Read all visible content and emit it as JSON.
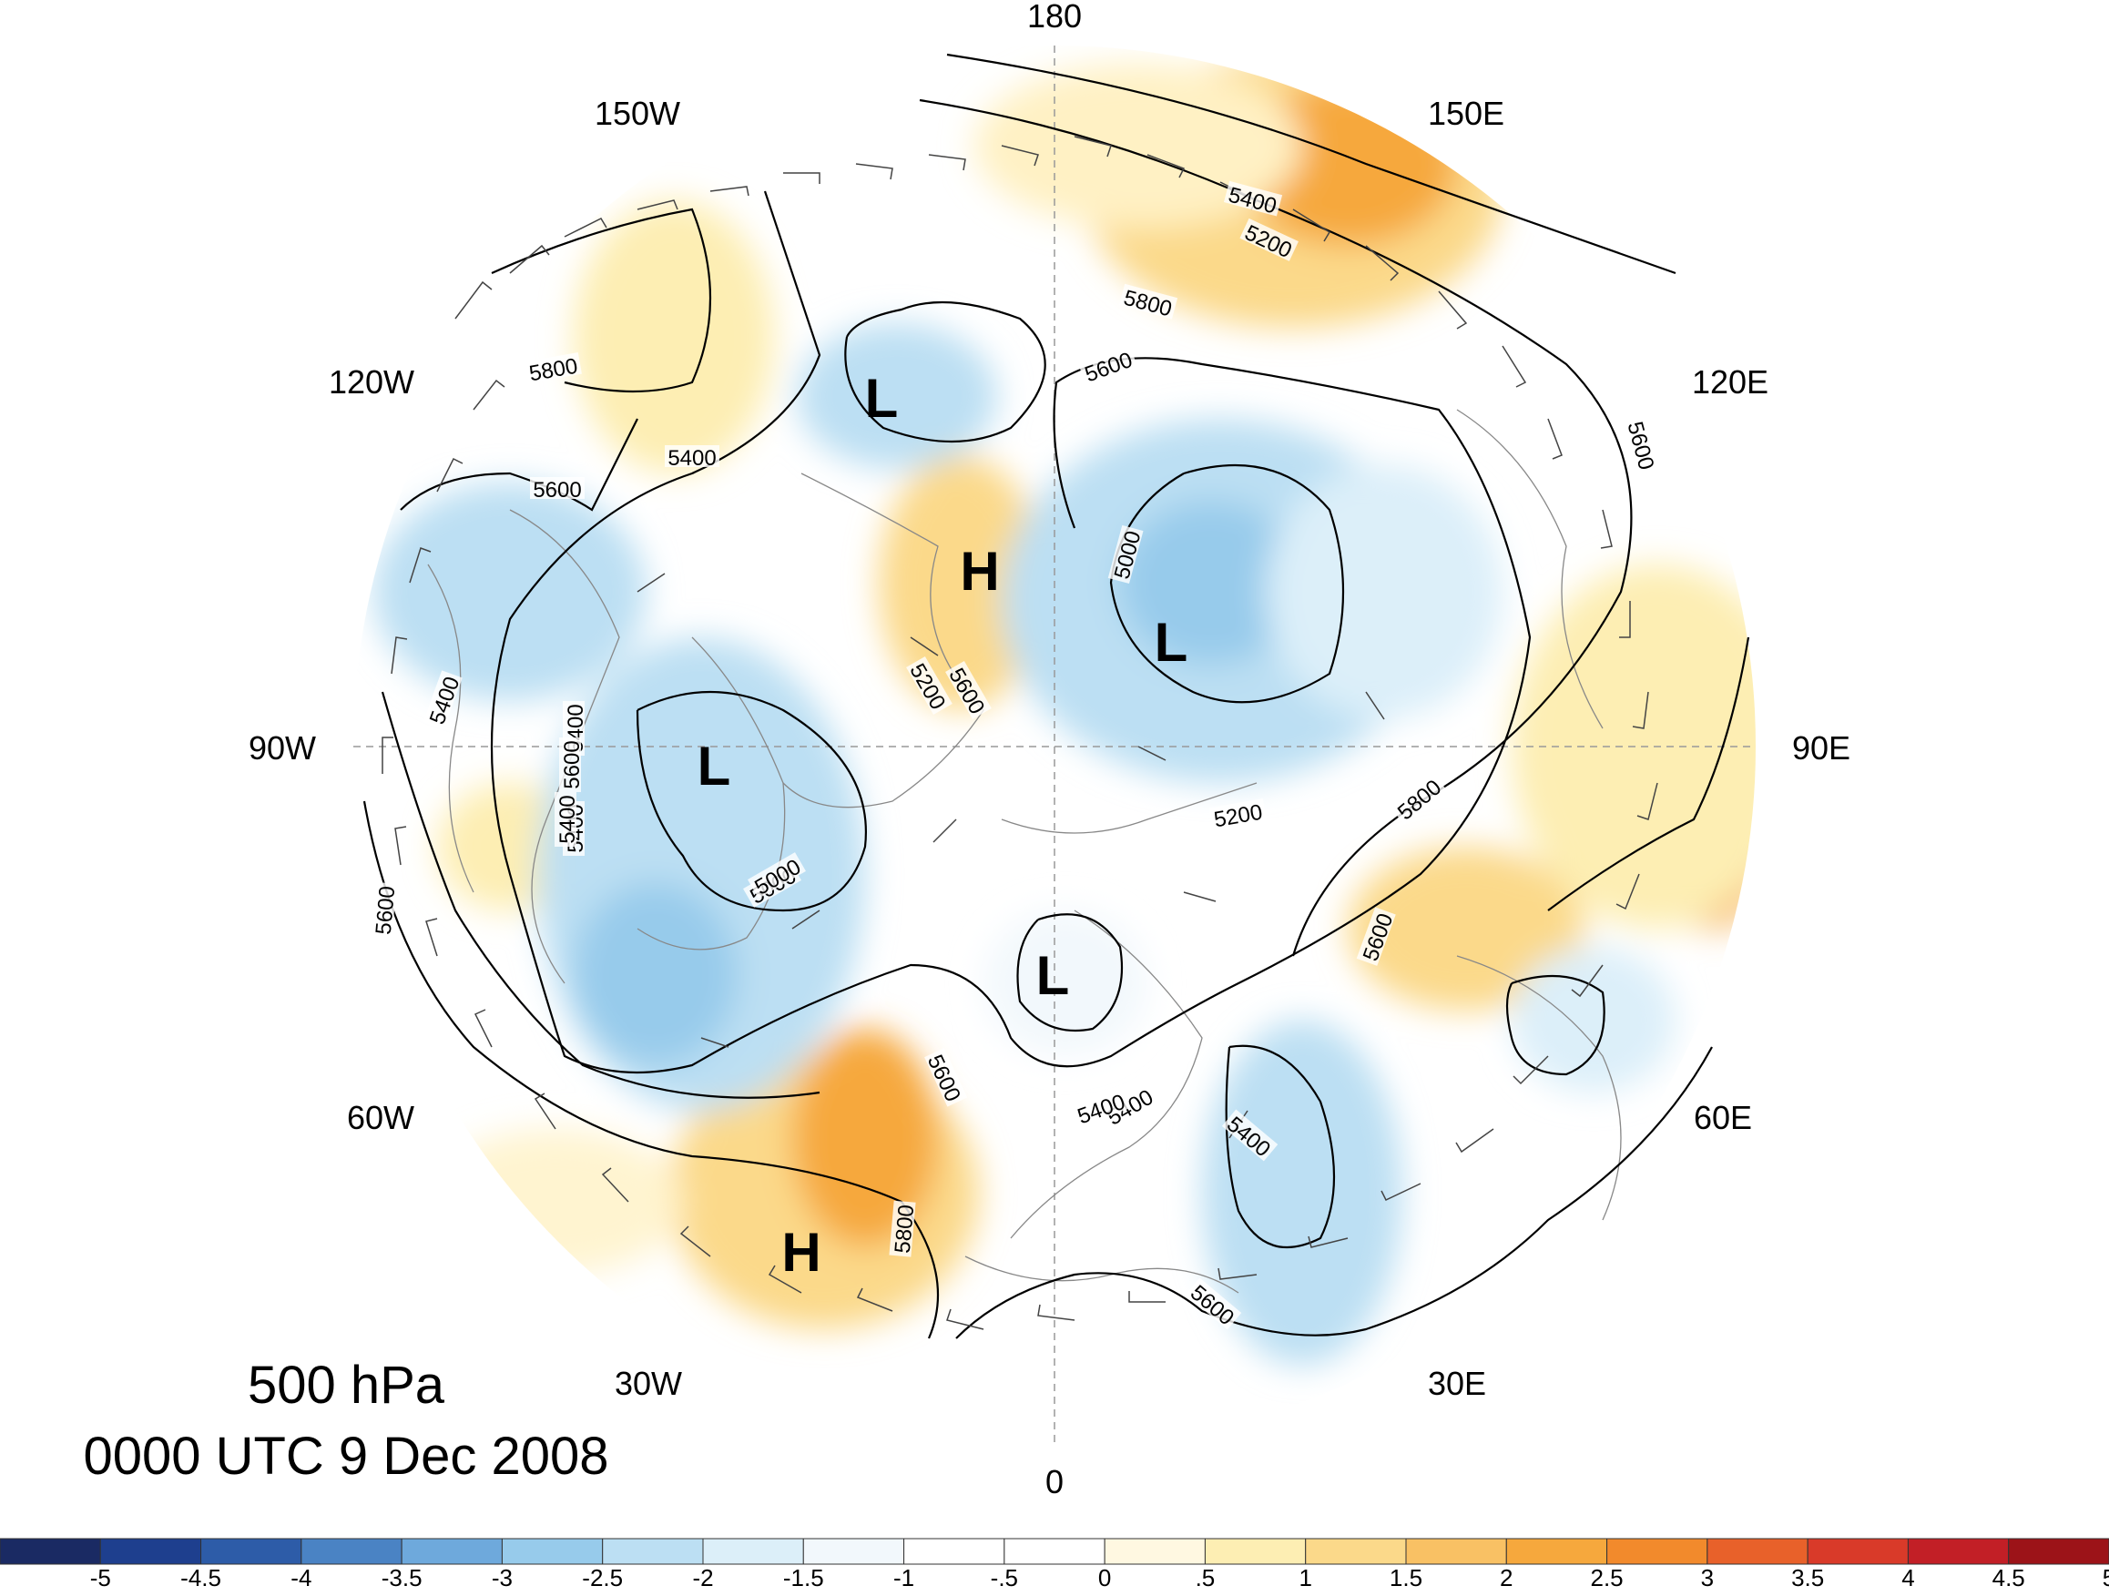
{
  "title": {
    "level": "500 hPa",
    "time": "0000 UTC 9 Dec 2008"
  },
  "longitude_labels": [
    "180",
    "150E",
    "120E",
    "90E",
    "60E",
    "30E",
    "0",
    "30W",
    "60W",
    "90W",
    "120W",
    "150W"
  ],
  "contour_labels": [
    "5800",
    "5600",
    "5400",
    "5200",
    "5800",
    "5600",
    "5600",
    "5400",
    "5000",
    "5200",
    "5000",
    "5400",
    "5600",
    "5400",
    "5400",
    "5600",
    "5800",
    "5600",
    "5200",
    "5400",
    "5600",
    "5800",
    "5600",
    "5400",
    "5400",
    "5000",
    "5400",
    "5600"
  ],
  "centers": [
    {
      "label": "L"
    },
    {
      "label": "H"
    },
    {
      "label": "L"
    },
    {
      "label": "L"
    },
    {
      "label": "L"
    },
    {
      "label": "H"
    }
  ],
  "colorbar": {
    "labels": [
      "-5",
      "-4.5",
      "-4",
      "-3.5",
      "-3",
      "-2.5",
      "-2",
      "-1.5",
      "-1",
      "-.5",
      "0",
      ".5",
      "1",
      "1.5",
      "2",
      "2.5",
      "3",
      "3.5",
      "4",
      "4.5",
      "5"
    ],
    "colors": [
      "#1a2a63",
      "#1e3f8e",
      "#2d5ca8",
      "#4a83c4",
      "#6ea9dc",
      "#97cbeb",
      "#bcdff3",
      "#dceff9",
      "#f2f8fc",
      "#ffffff",
      "#ffffff",
      "#fff8e1",
      "#fdeeb3",
      "#fbd98a",
      "#f9c164",
      "#f6a83d",
      "#f28a2c",
      "#e8612a",
      "#d93a29",
      "#c21f26",
      "#9c1318"
    ]
  }
}
